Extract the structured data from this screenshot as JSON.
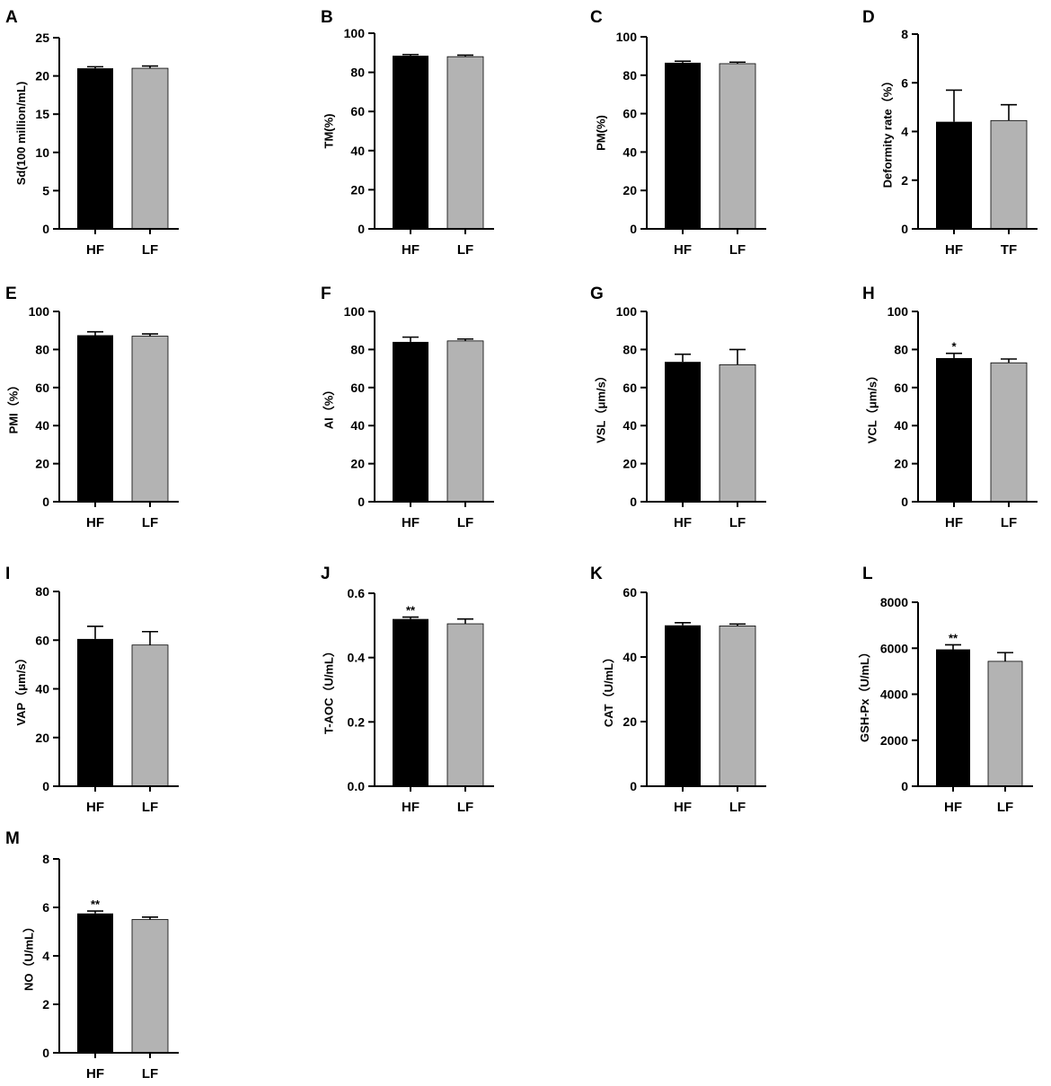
{
  "colors": {
    "hf_bar": "#000000",
    "lf_bar": "#b3b3b3",
    "axis": "#000000"
  },
  "chart_data": [
    {
      "panel": "A",
      "type": "bar",
      "ylabel": "Sd(100 million/mL)",
      "ylim": [
        0,
        25
      ],
      "ticks": [
        0,
        5,
        10,
        15,
        20,
        25
      ],
      "tick_labels": [
        "0",
        "5",
        "10",
        "15",
        "20",
        "25"
      ],
      "categories": [
        "HF",
        "LF"
      ],
      "values": [
        21.0,
        21.0
      ],
      "errors": [
        0.2,
        0.3
      ],
      "annotations": [
        "",
        ""
      ]
    },
    {
      "panel": "B",
      "type": "bar",
      "ylabel": "TM(%)",
      "ylim": [
        0,
        100
      ],
      "ticks": [
        0,
        20,
        40,
        60,
        80,
        100
      ],
      "tick_labels": [
        "0",
        "20",
        "40",
        "60",
        "80",
        "100"
      ],
      "categories": [
        "HF",
        "LF"
      ],
      "values": [
        88.5,
        88.0
      ],
      "errors": [
        0.6,
        0.8
      ],
      "annotations": [
        "",
        ""
      ]
    },
    {
      "panel": "C",
      "type": "bar",
      "ylabel": "PM(%)",
      "ylim": [
        0,
        100
      ],
      "ticks": [
        0,
        20,
        40,
        60,
        80,
        100
      ],
      "tick_labels": [
        "0",
        "20",
        "40",
        "60",
        "80",
        "100"
      ],
      "categories": [
        "HF",
        "LF"
      ],
      "values": [
        86.5,
        86.0
      ],
      "errors": [
        0.8,
        0.8
      ],
      "annotations": [
        "",
        ""
      ]
    },
    {
      "panel": "D",
      "type": "bar",
      "ylabel": "Deformity rate（%）",
      "ylim": [
        0,
        8
      ],
      "ticks": [
        0,
        2,
        4,
        6,
        8
      ],
      "tick_labels": [
        "0",
        "2",
        "4",
        "6",
        "8"
      ],
      "categories": [
        "HF",
        "TF"
      ],
      "values": [
        4.4,
        4.45
      ],
      "errors": [
        1.3,
        0.65
      ],
      "annotations": [
        "",
        ""
      ]
    },
    {
      "panel": "E",
      "type": "bar",
      "ylabel": "PMI（%）",
      "ylim": [
        0,
        100
      ],
      "ticks": [
        0,
        20,
        40,
        60,
        80,
        100
      ],
      "tick_labels": [
        "0",
        "20",
        "40",
        "60",
        "80",
        "100"
      ],
      "categories": [
        "HF",
        "LF"
      ],
      "values": [
        87.5,
        87.0
      ],
      "errors": [
        1.8,
        1.2
      ],
      "annotations": [
        "",
        ""
      ]
    },
    {
      "panel": "F",
      "type": "bar",
      "ylabel": "AI（%）",
      "ylim": [
        0,
        100
      ],
      "ticks": [
        0,
        20,
        40,
        60,
        80,
        100
      ],
      "tick_labels": [
        "0",
        "20",
        "40",
        "60",
        "80",
        "100"
      ],
      "categories": [
        "HF",
        "LF"
      ],
      "values": [
        84.0,
        84.5
      ],
      "errors": [
        2.5,
        1.0
      ],
      "annotations": [
        "",
        ""
      ]
    },
    {
      "panel": "G",
      "type": "bar",
      "ylabel": "VSL（μm/s）",
      "ylim": [
        0,
        100
      ],
      "ticks": [
        0,
        20,
        40,
        60,
        80,
        100
      ],
      "tick_labels": [
        "0",
        "20",
        "40",
        "60",
        "80",
        "100"
      ],
      "categories": [
        "HF",
        "LF"
      ],
      "values": [
        73.5,
        72.0
      ],
      "errors": [
        4.0,
        8.0
      ],
      "annotations": [
        "",
        ""
      ]
    },
    {
      "panel": "H",
      "type": "bar",
      "ylabel": "VCL（μm/s）",
      "ylim": [
        0,
        100
      ],
      "ticks": [
        0,
        20,
        40,
        60,
        80,
        100
      ],
      "tick_labels": [
        "0",
        "20",
        "40",
        "60",
        "80",
        "100"
      ],
      "categories": [
        "HF",
        "LF"
      ],
      "values": [
        75.5,
        73.0
      ],
      "errors": [
        2.5,
        2.0
      ],
      "annotations": [
        "*",
        ""
      ]
    },
    {
      "panel": "I",
      "type": "bar",
      "ylabel": "VAP（μm/s）",
      "ylim": [
        0,
        80
      ],
      "ticks": [
        0,
        20,
        40,
        60,
        80
      ],
      "tick_labels": [
        "0",
        "20",
        "40",
        "60",
        "80"
      ],
      "categories": [
        "HF",
        "LF"
      ],
      "values": [
        60.5,
        58.0
      ],
      "errors": [
        5.2,
        5.5
      ],
      "annotations": [
        "",
        ""
      ]
    },
    {
      "panel": "J",
      "type": "bar",
      "ylabel": "T-AOC（U/mL）",
      "ylim": [
        0,
        0.6
      ],
      "ticks": [
        0,
        0.2,
        0.4,
        0.6
      ],
      "tick_labels": [
        "0.0",
        "0.2",
        "0.4",
        "0.6"
      ],
      "categories": [
        "HF",
        "LF"
      ],
      "values": [
        0.52,
        0.505
      ],
      "errors": [
        0.006,
        0.015
      ],
      "annotations": [
        "**",
        ""
      ]
    },
    {
      "panel": "K",
      "type": "bar",
      "ylabel": "CAT（U/mL）",
      "ylim": [
        0,
        60
      ],
      "ticks": [
        0,
        20,
        40,
        60
      ],
      "tick_labels": [
        "0",
        "20",
        "40",
        "60"
      ],
      "categories": [
        "HF",
        "LF"
      ],
      "values": [
        49.8,
        49.6
      ],
      "errors": [
        0.8,
        0.6
      ],
      "annotations": [
        "",
        ""
      ]
    },
    {
      "panel": "L",
      "type": "bar",
      "ylabel": "GSH-Px（U/mL）",
      "ylim": [
        0,
        8000
      ],
      "ticks": [
        0,
        2000,
        4000,
        6000,
        8000
      ],
      "tick_labels": [
        "0",
        "2000",
        "4000",
        "6000",
        "8000"
      ],
      "categories": [
        "HF",
        "LF"
      ],
      "values": [
        5950,
        5430
      ],
      "errors": [
        200,
        380
      ],
      "annotations": [
        "**",
        ""
      ]
    },
    {
      "panel": "M",
      "type": "bar",
      "ylabel": "NO（U/mL）",
      "ylim": [
        0,
        8
      ],
      "ticks": [
        0,
        2,
        4,
        6,
        8
      ],
      "tick_labels": [
        "0",
        "2",
        "4",
        "6",
        "8"
      ],
      "categories": [
        "HF",
        "LF"
      ],
      "values": [
        5.75,
        5.5
      ],
      "errors": [
        0.1,
        0.1
      ],
      "annotations": [
        "**",
        ""
      ]
    }
  ]
}
